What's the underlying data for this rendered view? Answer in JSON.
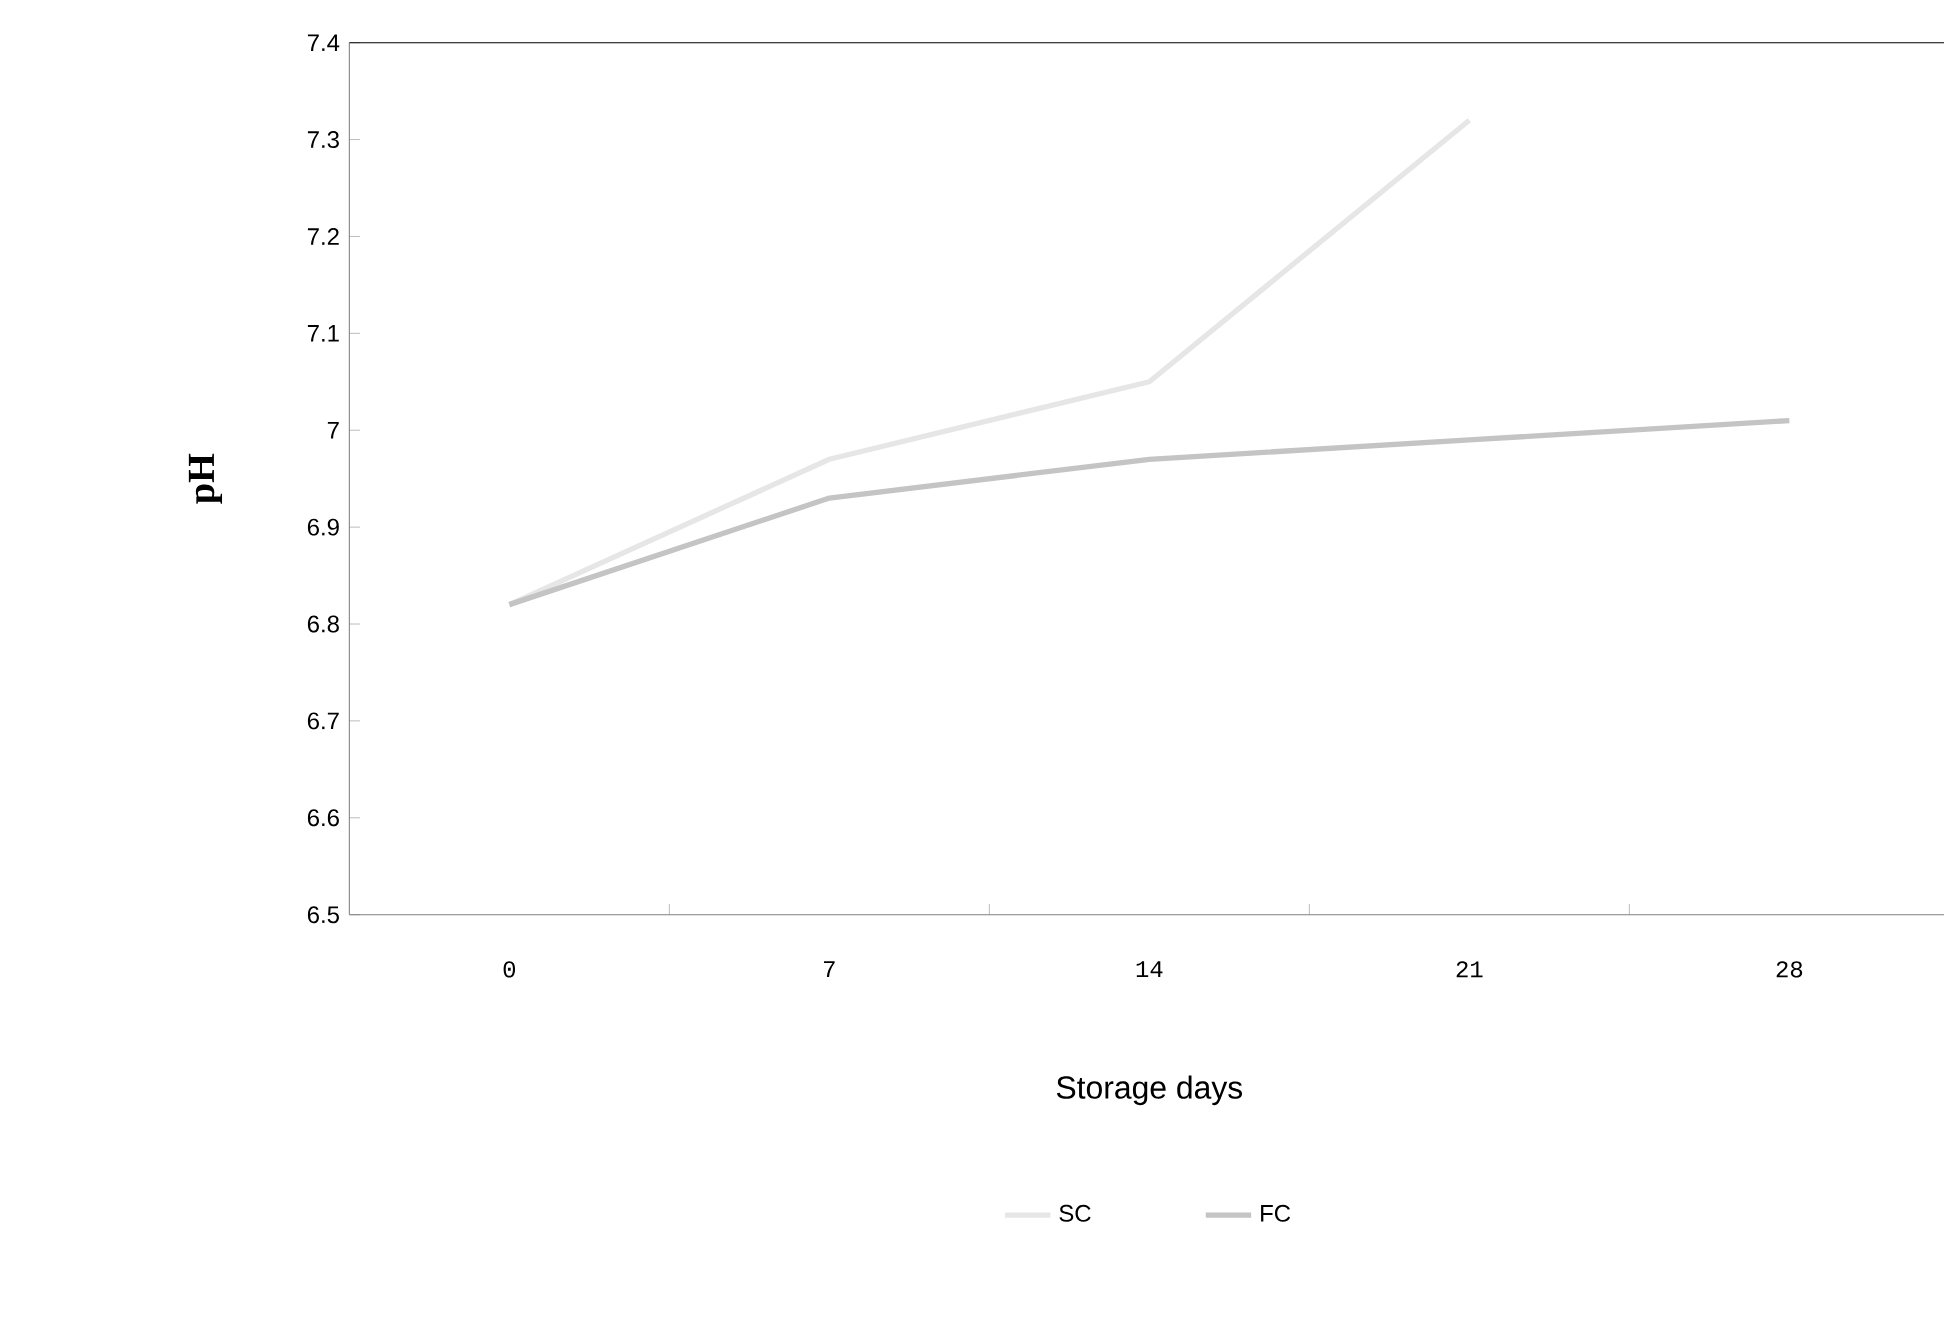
{
  "chart_data": {
    "type": "line",
    "xlabel": "Storage days",
    "ylabel": "pH",
    "categories": [
      "0",
      "7",
      "14",
      "21",
      "28"
    ],
    "series": [
      {
        "name": "SC",
        "color": "#e6e6e6",
        "values": [
          6.82,
          6.97,
          7.05,
          7.32,
          null
        ]
      },
      {
        "name": "FC",
        "color": "#c4c4c4",
        "values": [
          6.82,
          6.93,
          6.97,
          6.99,
          7.01
        ]
      }
    ],
    "ylim": [
      6.5,
      7.4
    ],
    "yticks": [
      6.5,
      6.6,
      6.7,
      6.8,
      6.9,
      7,
      7.1,
      7.2,
      7.3,
      7.4
    ],
    "grid": false,
    "legend": "bottom",
    "marker": "none",
    "line_style": "solid"
  }
}
